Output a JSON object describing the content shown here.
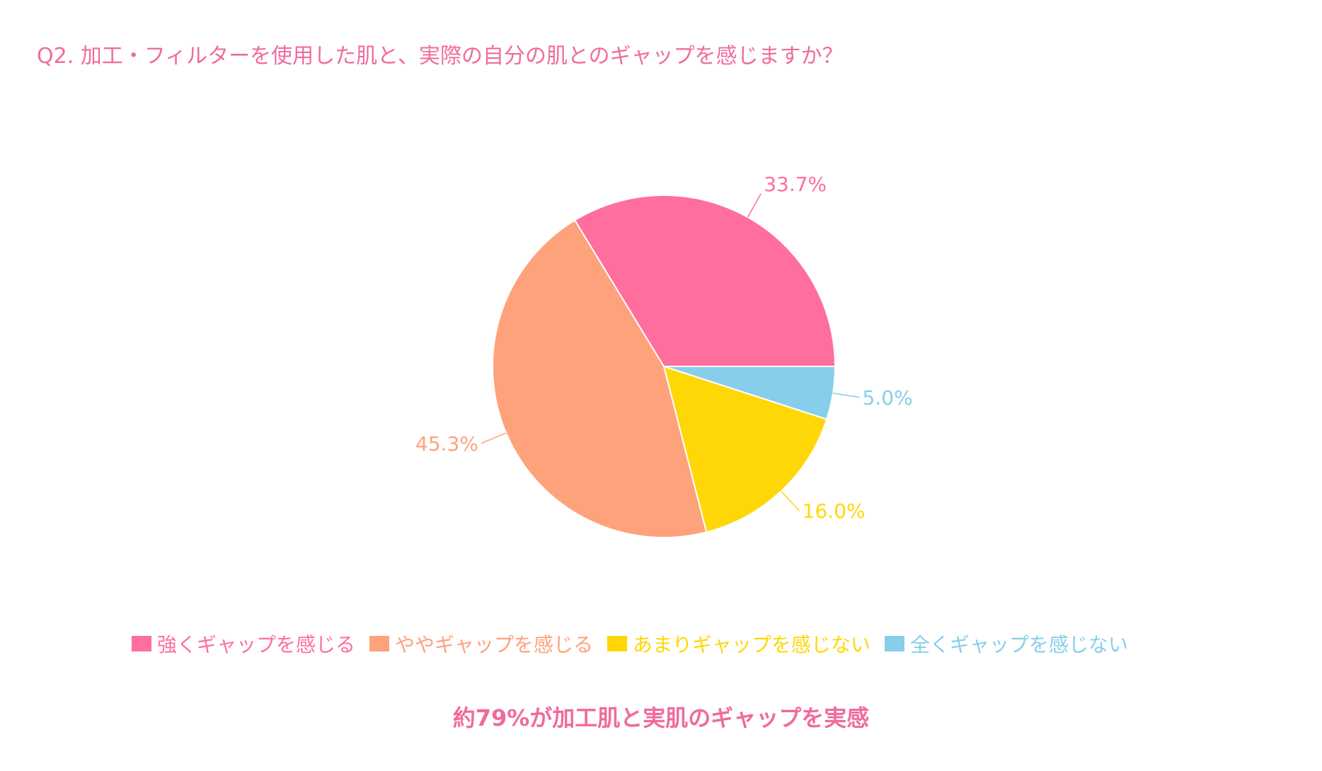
{
  "question": "Q2. 加工・フィルターを使用した肌と、実際の自分の肌とのギャップを感じますか？",
  "conclusion": "約79%が加工肌と実肌のギャップを実感",
  "chart_data": {
    "type": "pie",
    "slices": [
      {
        "label": "強くギャップを感じる",
        "value": 33.7,
        "display": "33.7%",
        "color": "#ff6e9c"
      },
      {
        "label": "ややギャップを感じる",
        "value": 45.3,
        "display": "45.3%",
        "color": "#fea27c"
      },
      {
        "label": "あまりギャップを感じない",
        "value": 16.0,
        "display": "16.0%",
        "color": "#ffd707"
      },
      {
        "label": "全くギャップを感じない",
        "value": 5.0,
        "display": "5.0%",
        "color": "#87ceea"
      }
    ],
    "slice_order_clockwise_from_3_oclock": [
      "全くギャップを感じない",
      "あまりギャップを感じない",
      "ややギャップを感じる",
      "強くギャップを感じる"
    ],
    "legend_position": "bottom",
    "legend_order": [
      "強くギャップを感じる",
      "ややギャップを感じる",
      "あまりギャップを感じない",
      "全くギャップを感じない"
    ]
  }
}
